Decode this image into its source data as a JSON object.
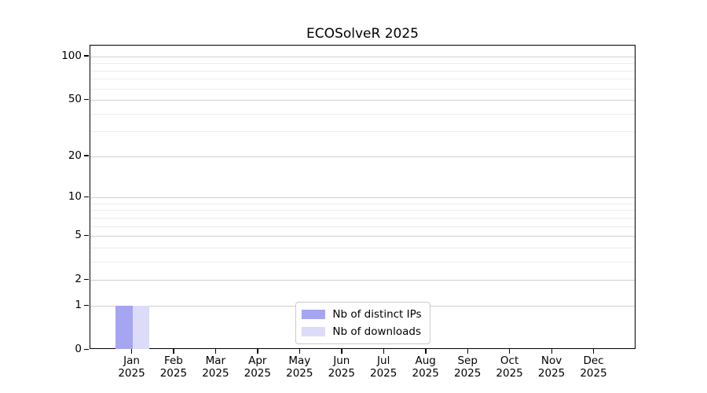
{
  "chart_data": {
    "type": "bar",
    "title": "ECOSolveR 2025",
    "categories": [
      "Jan 2025",
      "Feb 2025",
      "Mar 2025",
      "Apr 2025",
      "May 2025",
      "Jun 2025",
      "Jul 2025",
      "Aug 2025",
      "Sep 2025",
      "Oct 2025",
      "Nov 2025",
      "Dec 2025"
    ],
    "x_tick_month": [
      "Jan",
      "Feb",
      "Mar",
      "Apr",
      "May",
      "Jun",
      "Jul",
      "Aug",
      "Sep",
      "Oct",
      "Nov",
      "Dec"
    ],
    "x_tick_year": "2025",
    "series": [
      {
        "name": "Nb of distinct IPs",
        "color": "#a5a5f2",
        "values": [
          1,
          0,
          0,
          0,
          0,
          0,
          0,
          0,
          0,
          0,
          0,
          0
        ]
      },
      {
        "name": "Nb of downloads",
        "color": "#dcdcf8",
        "values": [
          1,
          0,
          0,
          0,
          0,
          0,
          0,
          0,
          0,
          0,
          0,
          0
        ]
      }
    ],
    "xlabel": "",
    "ylabel": "",
    "yscale": "log10(1+x)",
    "ylim": [
      0,
      119
    ],
    "yticks": [
      0,
      1,
      2,
      5,
      10,
      20,
      50,
      100
    ],
    "minor_gridlines": [
      3,
      4,
      6,
      7,
      8,
      9,
      30,
      40,
      60,
      70,
      80,
      90
    ],
    "grid": true,
    "legend_position": "lower center",
    "axis_color": "#000000",
    "major_grid_color": "#cfcfcf",
    "minor_grid_color": "#ececec"
  }
}
